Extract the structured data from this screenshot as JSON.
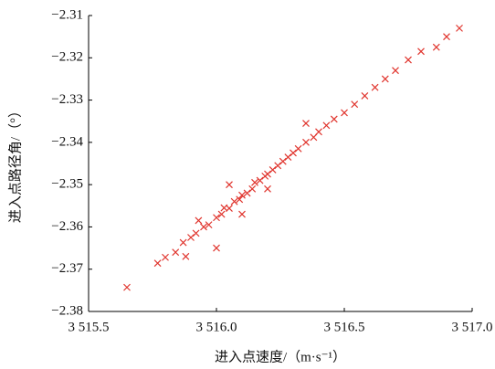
{
  "chart_data": {
    "type": "scatter",
    "x_label": "进入点速度/（m·s⁻¹）",
    "y_label": "进入点路径角/（°）",
    "color": "#e0352e",
    "marker": "x",
    "x": [
      3515.65,
      3515.77,
      3515.8,
      3515.84,
      3515.87,
      3515.9,
      3515.92,
      3515.95,
      3515.97,
      3516.0,
      3516.02,
      3516.03,
      3516.05,
      3516.07,
      3516.09,
      3516.1,
      3516.12,
      3516.14,
      3516.15,
      3516.17,
      3516.19,
      3516.2,
      3516.22,
      3516.24,
      3516.26,
      3516.28,
      3516.3,
      3516.32,
      3516.35,
      3516.38,
      3516.4,
      3516.43,
      3516.46,
      3516.5,
      3516.54,
      3516.58,
      3516.62,
      3516.66,
      3516.7,
      3516.75,
      3516.8,
      3516.86,
      3516.9,
      3516.95,
      3515.93,
      3516.05,
      3516.35,
      3516.0,
      3516.1,
      3515.88,
      3516.2
    ],
    "y": [
      -2.3743,
      -2.3686,
      -2.3672,
      -2.366,
      -2.3637,
      -2.3625,
      -2.3615,
      -2.36,
      -2.3595,
      -2.3578,
      -2.357,
      -2.3555,
      -2.3556,
      -2.354,
      -2.3535,
      -2.3525,
      -2.352,
      -2.351,
      -2.3495,
      -2.349,
      -2.348,
      -2.3475,
      -2.3465,
      -2.3455,
      -2.3445,
      -2.3435,
      -2.3425,
      -2.3415,
      -2.34,
      -2.3388,
      -2.3375,
      -2.336,
      -2.3345,
      -2.333,
      -2.331,
      -2.329,
      -2.327,
      -2.325,
      -2.323,
      -2.3205,
      -2.3185,
      -2.3175,
      -2.315,
      -2.313,
      -2.3585,
      -2.35,
      -2.3355,
      -2.365,
      -2.357,
      -2.367,
      -2.351
    ],
    "xlim": [
      3515.5,
      3517.0
    ],
    "xticks": [
      {
        "value": 3515.5,
        "label": "3 515.5"
      },
      {
        "value": 3516.0,
        "label": "3 516.0"
      },
      {
        "value": 3516.5,
        "label": "3 516.5"
      },
      {
        "value": 3517.0,
        "label": "3 517.0"
      }
    ],
    "ylim": [
      -2.38,
      -2.31
    ],
    "yticks": [
      {
        "value": -2.38,
        "label": "−2.38"
      },
      {
        "value": -2.37,
        "label": "−2.37"
      },
      {
        "value": -2.36,
        "label": "−2.36"
      },
      {
        "value": -2.35,
        "label": "−2.35"
      },
      {
        "value": -2.34,
        "label": "−2.34"
      },
      {
        "value": -2.33,
        "label": "−2.33"
      },
      {
        "value": -2.32,
        "label": "−2.32"
      },
      {
        "value": -2.31,
        "label": "−2.31"
      }
    ],
    "grid": false
  }
}
